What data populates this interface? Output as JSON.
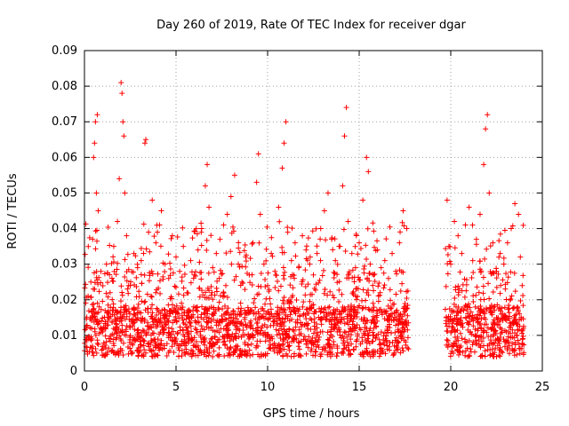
{
  "chart_data": {
    "type": "scatter",
    "title": "Day 260 of 2019, Rate Of TEC Index for receiver dgar",
    "xlabel": "GPS time / hours",
    "ylabel": "ROTI / TECUs",
    "xlim": [
      0,
      25
    ],
    "ylim": [
      0,
      0.09
    ],
    "xticks": [
      "0",
      "5",
      "10",
      "15",
      "20",
      "25"
    ],
    "yticks": [
      "0",
      "0.01",
      "0.02",
      "0.03",
      "0.04",
      "0.05",
      "0.06",
      "0.07",
      "0.08",
      "0.09"
    ],
    "grid": true,
    "marker": "+",
    "color": "#ff0000",
    "gaps_hours": [
      [
        17.7,
        19.7
      ]
    ],
    "series": [
      {
        "points": [
          [
            0.1,
            0.012
          ],
          [
            0.2,
            0.021
          ],
          [
            0.3,
            0.009
          ],
          [
            0.35,
            0.025
          ],
          [
            0.4,
            0.015
          ],
          [
            0.45,
            0.037
          ],
          [
            0.5,
            0.06
          ],
          [
            0.55,
            0.064
          ],
          [
            0.6,
            0.07
          ],
          [
            0.65,
            0.05
          ],
          [
            0.7,
            0.072
          ],
          [
            0.75,
            0.045
          ],
          [
            0.8,
            0.018
          ],
          [
            0.9,
            0.028
          ],
          [
            1.0,
            0.011
          ],
          [
            1.2,
            0.03
          ],
          [
            1.4,
            0.022
          ],
          [
            1.6,
            0.035
          ],
          [
            1.8,
            0.042
          ],
          [
            1.9,
            0.054
          ],
          [
            2.0,
            0.081
          ],
          [
            2.05,
            0.078
          ],
          [
            2.1,
            0.07
          ],
          [
            2.15,
            0.066
          ],
          [
            2.2,
            0.05
          ],
          [
            2.3,
            0.038
          ],
          [
            2.5,
            0.024
          ],
          [
            2.7,
            0.033
          ],
          [
            2.9,
            0.029
          ],
          [
            3.1,
            0.031
          ],
          [
            3.3,
            0.064
          ],
          [
            3.35,
            0.065
          ],
          [
            3.5,
            0.039
          ],
          [
            3.7,
            0.048
          ],
          [
            3.9,
            0.036
          ],
          [
            4.1,
            0.041
          ],
          [
            4.2,
            0.045
          ],
          [
            4.4,
            0.03
          ],
          [
            4.6,
            0.026
          ],
          [
            4.8,
            0.038
          ],
          [
            5.0,
            0.032
          ],
          [
            5.2,
            0.028
          ],
          [
            5.4,
            0.035
          ],
          [
            5.6,
            0.022
          ],
          [
            5.8,
            0.031
          ],
          [
            6.0,
            0.027
          ],
          [
            6.2,
            0.034
          ],
          [
            6.4,
            0.04
          ],
          [
            6.6,
            0.052
          ],
          [
            6.7,
            0.058
          ],
          [
            6.8,
            0.046
          ],
          [
            7.0,
            0.029
          ],
          [
            7.2,
            0.033
          ],
          [
            7.4,
            0.037
          ],
          [
            7.6,
            0.041
          ],
          [
            7.8,
            0.044
          ],
          [
            8.0,
            0.049
          ],
          [
            8.2,
            0.055
          ],
          [
            8.4,
            0.03
          ],
          [
            8.6,
            0.025
          ],
          [
            8.8,
            0.032
          ],
          [
            9.0,
            0.027
          ],
          [
            9.2,
            0.036
          ],
          [
            9.4,
            0.053
          ],
          [
            9.5,
            0.061
          ],
          [
            9.6,
            0.044
          ],
          [
            9.8,
            0.03
          ],
          [
            10.0,
            0.024
          ],
          [
            10.2,
            0.033
          ],
          [
            10.4,
            0.028
          ],
          [
            10.6,
            0.046
          ],
          [
            10.8,
            0.057
          ],
          [
            10.9,
            0.064
          ],
          [
            11.0,
            0.07
          ],
          [
            11.1,
            0.039
          ],
          [
            11.3,
            0.031
          ],
          [
            11.5,
            0.036
          ],
          [
            11.7,
            0.029
          ],
          [
            11.9,
            0.038
          ],
          [
            12.1,
            0.034
          ],
          [
            12.3,
            0.03
          ],
          [
            12.5,
            0.027
          ],
          [
            12.7,
            0.033
          ],
          [
            12.9,
            0.04
          ],
          [
            13.1,
            0.045
          ],
          [
            13.3,
            0.05
          ],
          [
            13.5,
            0.037
          ],
          [
            13.7,
            0.031
          ],
          [
            13.9,
            0.035
          ],
          [
            14.1,
            0.052
          ],
          [
            14.2,
            0.066
          ],
          [
            14.3,
            0.074
          ],
          [
            14.4,
            0.042
          ],
          [
            14.6,
            0.033
          ],
          [
            14.8,
            0.029
          ],
          [
            15.0,
            0.036
          ],
          [
            15.2,
            0.048
          ],
          [
            15.4,
            0.06
          ],
          [
            15.5,
            0.056
          ],
          [
            15.6,
            0.03
          ],
          [
            15.8,
            0.027
          ],
          [
            16.0,
            0.034
          ],
          [
            16.2,
            0.029
          ],
          [
            16.4,
            0.031
          ],
          [
            16.6,
            0.026
          ],
          [
            16.8,
            0.033
          ],
          [
            17.0,
            0.028
          ],
          [
            17.2,
            0.036
          ],
          [
            17.4,
            0.045
          ],
          [
            17.6,
            0.04
          ],
          [
            19.8,
            0.048
          ],
          [
            19.9,
            0.035
          ],
          [
            20.0,
            0.03
          ],
          [
            20.2,
            0.042
          ],
          [
            20.4,
            0.038
          ],
          [
            20.6,
            0.033
          ],
          [
            20.8,
            0.041
          ],
          [
            21.0,
            0.046
          ],
          [
            21.2,
            0.031
          ],
          [
            21.4,
            0.037
          ],
          [
            21.6,
            0.044
          ],
          [
            21.8,
            0.058
          ],
          [
            21.9,
            0.068
          ],
          [
            22.0,
            0.072
          ],
          [
            22.1,
            0.05
          ],
          [
            22.3,
            0.036
          ],
          [
            22.5,
            0.028
          ],
          [
            22.7,
            0.033
          ],
          [
            22.9,
            0.03
          ],
          [
            23.1,
            0.036
          ],
          [
            23.3,
            0.04
          ],
          [
            23.5,
            0.047
          ],
          [
            23.7,
            0.044
          ],
          [
            23.8,
            0.032
          ],
          [
            23.9,
            0.024
          ]
        ]
      }
    ]
  }
}
